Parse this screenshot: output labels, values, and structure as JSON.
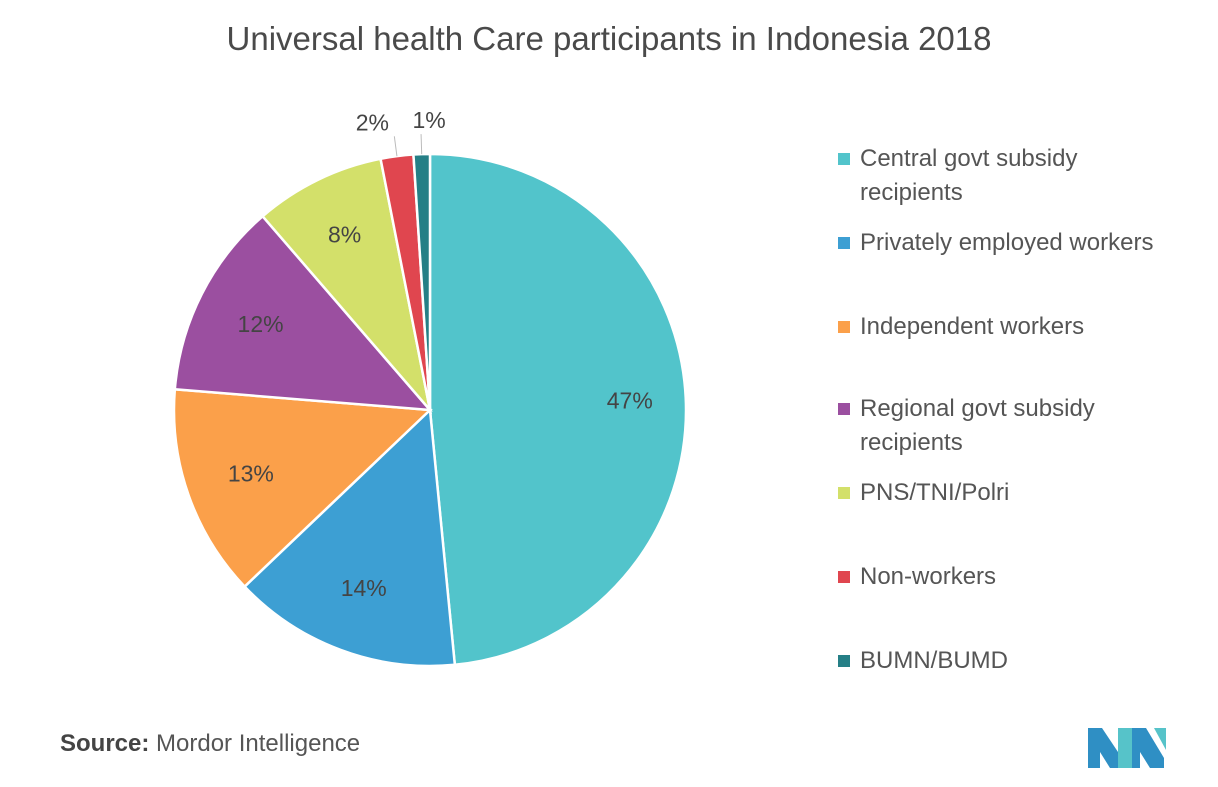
{
  "chart_data": {
    "type": "pie",
    "title": "Universal health Care participants in Indonesia 2018",
    "categories": [
      "Central govt subsidy recipients",
      "Privately employed workers",
      "Independent workers",
      "Regional govt subsidy recipients",
      "PNS/TNI/Polri",
      "Non-workers",
      "BUMN/BUMD"
    ],
    "values": [
      47,
      14,
      13,
      12,
      8,
      2,
      1
    ],
    "data_labels": [
      "47%",
      "14%",
      "13%",
      "12%",
      "8%",
      "2%",
      "1%"
    ],
    "colors": [
      "#52c4cb",
      "#3d9fd3",
      "#fba04a",
      "#9b4fa0",
      "#d3e06a",
      "#e0464f",
      "#257f86"
    ],
    "legend_placement": "right"
  },
  "source": {
    "label": "Source:",
    "text": "Mordor Intelligence"
  }
}
